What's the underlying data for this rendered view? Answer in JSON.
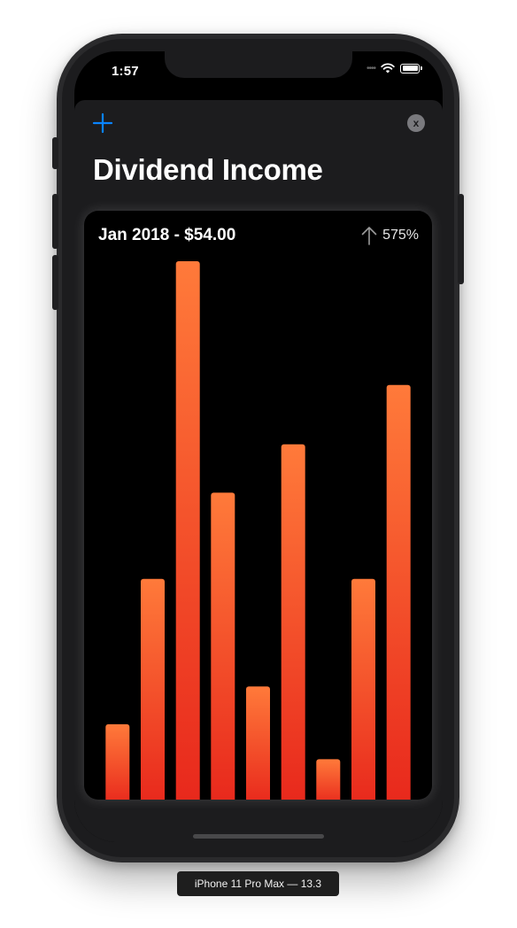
{
  "status_bar": {
    "time": "1:57"
  },
  "nav": {
    "add_icon": "plus-icon",
    "close_icon": "xmark-circle-icon",
    "close_label": "x"
  },
  "page": {
    "title": "Dividend Income"
  },
  "card": {
    "selected_label": "Jan 2018 - $54.00",
    "change_icon": "arrow-up-icon",
    "change_percent": "575%"
  },
  "chart_data": {
    "type": "bar",
    "values": [
      14,
      41,
      100,
      57,
      21,
      66,
      7.5,
      41,
      77
    ],
    "colors": {
      "bar_top": "#ff7a3a",
      "bar_bottom": "#e8281c"
    }
  },
  "device_label": "iPhone 11 Pro Max — 13.3",
  "colors": {
    "accent": "#0a84ff",
    "background": "#000000",
    "sheet": "#1c1c1e"
  }
}
